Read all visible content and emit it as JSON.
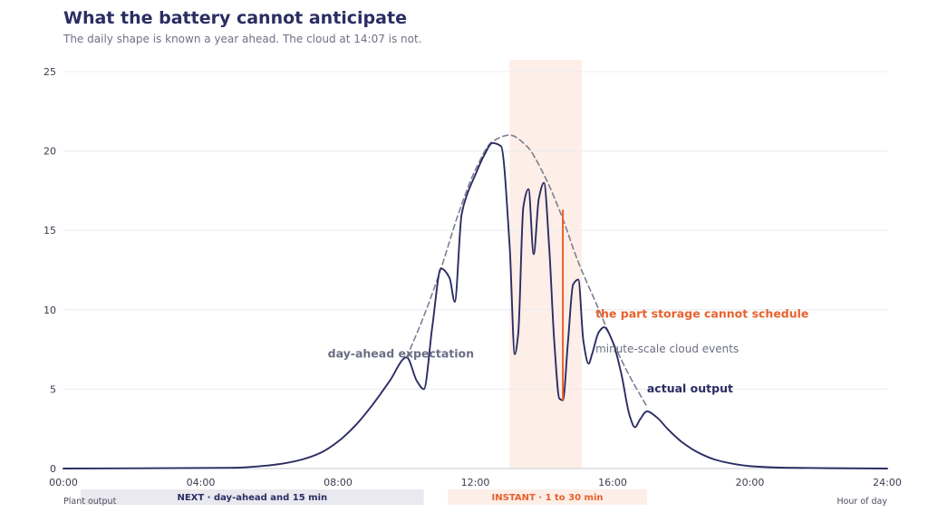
{
  "title": "What the battery cannot anticipate",
  "subtitle": "The daily shape is known a year ahead. The cloud at 14:07 is not.",
  "colors": {
    "actual": "#2b2d63",
    "expected": "#7d7f93",
    "accent": "#e8612c",
    "highlight_band": "#fdeee7",
    "next_band": "#e9e9ef",
    "grid": "#ececf0"
  },
  "chart_data": {
    "type": "line",
    "xlim": [
      0,
      24
    ],
    "ylim": [
      0,
      25
    ],
    "x_ticks": [
      0,
      4,
      8,
      12,
      16,
      20,
      24
    ],
    "x_tick_labels": [
      "00:00",
      "04:00",
      "08:00",
      "12:00",
      "16:00",
      "20:00",
      "24:00"
    ],
    "y_ticks": [
      0,
      5,
      10,
      15,
      20,
      25
    ],
    "y_tick_labels": [
      "0",
      "5",
      "10",
      "15",
      "20",
      "25"
    ],
    "xlabel": "Hour of day",
    "ylabel": "Plant output",
    "grid": "horizontal",
    "series": [
      {
        "name": "day-ahead expectation",
        "style": "dashed",
        "x": [
          10.0,
          10.5,
          11.0,
          11.5,
          12.0,
          12.5,
          13.0,
          13.5,
          14.0,
          14.5,
          15.0,
          15.5,
          16.0,
          16.5,
          17.0
        ],
        "y": [
          7.0,
          9.6,
          12.6,
          16.0,
          18.8,
          20.6,
          21.0,
          20.3,
          18.5,
          16.0,
          13.0,
          10.5,
          8.0,
          5.8,
          3.9
        ]
      },
      {
        "name": "actual output",
        "style": "solid",
        "x": [
          0,
          5,
          6,
          6.5,
          7,
          7.5,
          8,
          8.5,
          9,
          9.5,
          10.0,
          10.3,
          10.5,
          10.75,
          11.0,
          11.25,
          11.4,
          11.6,
          11.75,
          12.0,
          12.25,
          12.5,
          12.75,
          13.0,
          13.15,
          13.25,
          13.4,
          13.55,
          13.7,
          13.85,
          14.0,
          14.15,
          14.3,
          14.45,
          14.55,
          14.7,
          14.85,
          15.0,
          15.15,
          15.3,
          15.4,
          15.6,
          15.75,
          16.0,
          16.25,
          16.5,
          16.65,
          16.8,
          17.0,
          17.3,
          17.6,
          18.0,
          18.5,
          19.0,
          19.5,
          20.0,
          21.0,
          24.0
        ],
        "y": [
          0,
          0.05,
          0.2,
          0.35,
          0.6,
          1.0,
          1.7,
          2.7,
          4.0,
          5.5,
          7.0,
          5.5,
          5.0,
          9.0,
          12.6,
          12.0,
          10.5,
          16.0,
          17.2,
          18.5,
          19.7,
          20.5,
          20.3,
          14.0,
          7.2,
          8.5,
          16.5,
          17.6,
          13.5,
          17.0,
          18.0,
          14.0,
          8.0,
          4.4,
          4.3,
          8.0,
          11.6,
          11.9,
          8.0,
          6.6,
          7.2,
          8.6,
          8.9,
          8.0,
          6.0,
          3.3,
          2.6,
          3.1,
          3.6,
          3.2,
          2.5,
          1.7,
          1.0,
          0.55,
          0.3,
          0.15,
          0.05,
          0
        ]
      }
    ],
    "highlight": {
      "x_start": 13.0,
      "x_end": 15.1
    },
    "gap_marker": {
      "x": 14.55,
      "y_low": 4.3,
      "y_high": 16.3
    },
    "annotations": [
      {
        "text": "day-ahead expectation",
        "x": 7.7,
        "y": 7.0,
        "style": "gray-bold"
      },
      {
        "text": "the part storage cannot schedule",
        "x": 15.5,
        "y": 9.5,
        "style": "orange"
      },
      {
        "text": "minute-scale cloud events",
        "x": 15.5,
        "y": 7.3,
        "style": "gray"
      },
      {
        "text": "actual output",
        "x": 17.0,
        "y": 4.8,
        "style": "navy"
      }
    ],
    "horizon_bands": [
      {
        "label": "NEXT · day-ahead and 15 min",
        "x_start": 0.5,
        "x_end": 10.5,
        "style": "next"
      },
      {
        "label": "INSTANT · 1 to 30 min",
        "x_start": 11.2,
        "x_end": 17.0,
        "style": "instant"
      }
    ]
  }
}
